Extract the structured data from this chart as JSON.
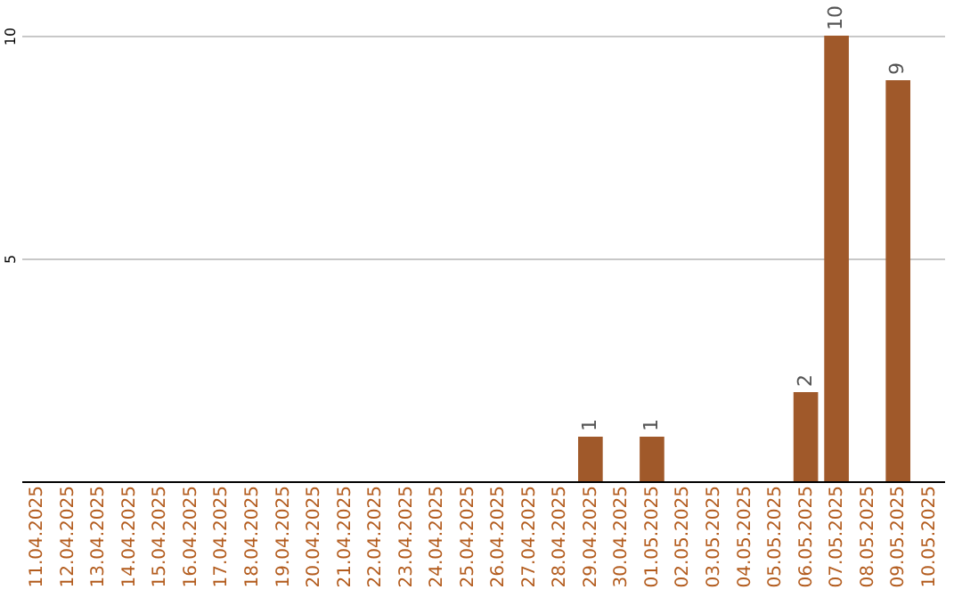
{
  "chart_data": {
    "type": "bar",
    "categories": [
      "11.04.2025",
      "12.04.2025",
      "13.04.2025",
      "14.04.2025",
      "15.04.2025",
      "16.04.2025",
      "17.04.2025",
      "18.04.2025",
      "19.04.2025",
      "20.04.2025",
      "21.04.2025",
      "22.04.2025",
      "23.04.2025",
      "24.04.2025",
      "25.04.2025",
      "26.04.2025",
      "27.04.2025",
      "28.04.2025",
      "29.04.2025",
      "30.04.2025",
      "01.05.2025",
      "02.05.2025",
      "03.05.2025",
      "04.05.2025",
      "05.05.2025",
      "06.05.2025",
      "07.05.2025",
      "08.05.2025",
      "09.05.2025",
      "10.05.2025"
    ],
    "values": [
      0,
      0,
      0,
      0,
      0,
      0,
      0,
      0,
      0,
      0,
      0,
      0,
      0,
      0,
      0,
      0,
      0,
      0,
      1,
      0,
      1,
      0,
      0,
      0,
      0,
      2,
      10,
      0,
      9,
      0
    ],
    "value_labels": [
      null,
      null,
      null,
      null,
      null,
      null,
      null,
      null,
      null,
      null,
      null,
      null,
      null,
      null,
      null,
      null,
      null,
      null,
      "1",
      null,
      "1",
      null,
      null,
      null,
      null,
      "2",
      "10",
      null,
      "9",
      null
    ],
    "color": "#a0592a",
    "ylim": [
      0,
      10
    ],
    "yticks": [
      5,
      10
    ],
    "grid": "y"
  }
}
